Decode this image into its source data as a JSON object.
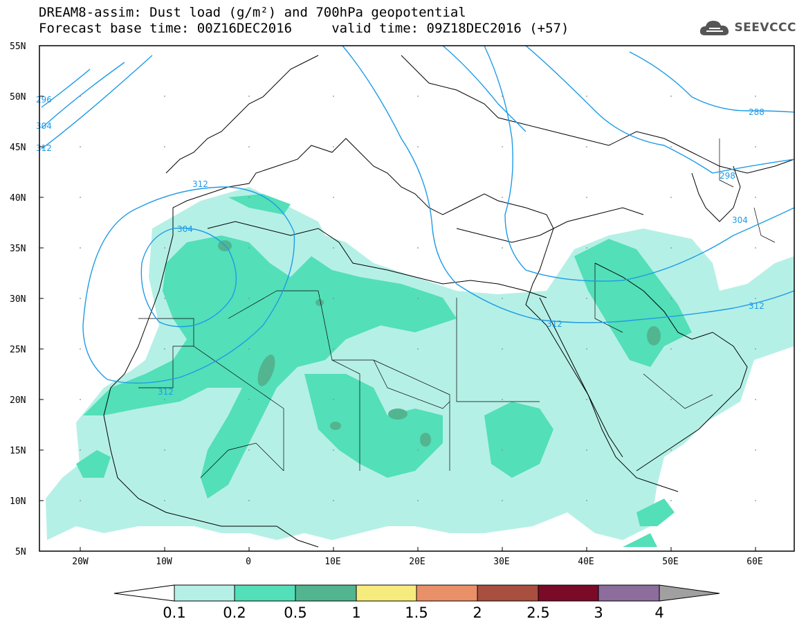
{
  "header": {
    "title_line1": "DREAM8-assim: Dust load (g/m²) and 700hPa geopotential",
    "title_line2": "Forecast base time: 00Z16DEC2016     valid time: 09Z18DEC2016 (+57)"
  },
  "logo": {
    "text": "SEEVCCC",
    "icon": "cloud-icon"
  },
  "map": {
    "lat_labels": [
      "55N",
      "50N",
      "45N",
      "40N",
      "35N",
      "30N",
      "25N",
      "20N",
      "15N",
      "10N",
      "5N"
    ],
    "lon_labels": [
      "20W",
      "10W",
      "0",
      "10E",
      "20E",
      "30E",
      "40E",
      "50E",
      "60E"
    ],
    "contour_labels": [
      "312",
      "304",
      "312",
      "296",
      "304",
      "312",
      "288",
      "298",
      "304",
      "312",
      "312"
    ]
  },
  "colorbar": {
    "labels": [
      "0.1",
      "0.2",
      "0.5",
      "1",
      "1.5",
      "2",
      "2.5",
      "3",
      "4"
    ],
    "colors": [
      "#ffffff",
      "#b5f0e6",
      "#53dfb8",
      "#52b590",
      "#f6ec7e",
      "#e99068",
      "#a84f40",
      "#7a0a28",
      "#8c6d9c",
      "#a0a0a0"
    ]
  },
  "colors": {
    "contour": "#1e9be6",
    "dust_low": "#b5f0e6",
    "dust_mid": "#53dfb8",
    "dust_high": "#52b590"
  }
}
